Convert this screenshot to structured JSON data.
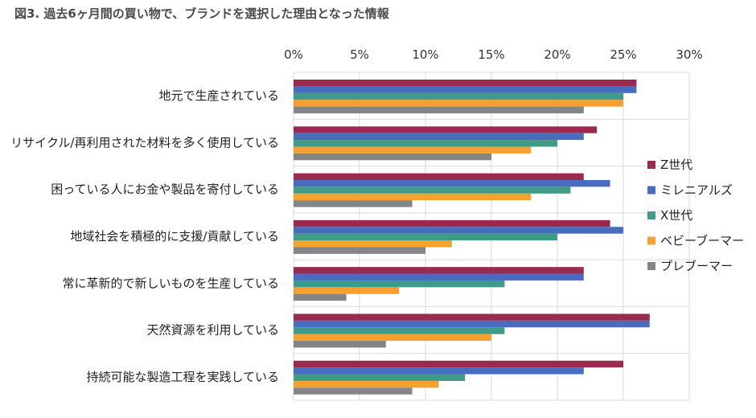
{
  "chart_data": {
    "type": "bar",
    "orientation": "horizontal",
    "title": "図3. 過去6ヶ月間の買い物で、ブランドを選択した理由となった情報",
    "xlabel": "",
    "ylabel": "",
    "xlim": [
      0,
      30
    ],
    "x_ticks": [
      "0%",
      "5%",
      "10%",
      "15%",
      "20%",
      "25%",
      "30%"
    ],
    "grid": true,
    "legend_position": "right",
    "categories": [
      "地元で生産されている",
      "リサイクル/再利用された材料を多く使用している",
      "困っている人にお金や製品を寄付している",
      "地域社会を積極的に支援/貢献している",
      "常に革新的で新しいものを生産している",
      "天然資源を利用している",
      "持続可能な製造工程を実践している"
    ],
    "series": [
      {
        "name": "Z世代",
        "color": "#9b2a4f",
        "values": [
          26,
          23,
          22,
          24,
          22,
          27,
          25
        ]
      },
      {
        "name": "ミレニアルズ",
        "color": "#4a6cc0",
        "values": [
          26,
          22,
          24,
          25,
          22,
          27,
          22
        ]
      },
      {
        "name": "X世代",
        "color": "#3f9a87",
        "values": [
          25,
          20,
          21,
          20,
          16,
          16,
          13
        ]
      },
      {
        "name": "ベビーブーマー",
        "color": "#f5a030",
        "values": [
          25,
          18,
          18,
          12,
          8,
          15,
          11
        ]
      },
      {
        "name": "プレブーマー",
        "color": "#858585",
        "values": [
          22,
          15,
          9,
          10,
          4,
          7,
          9
        ]
      }
    ]
  }
}
